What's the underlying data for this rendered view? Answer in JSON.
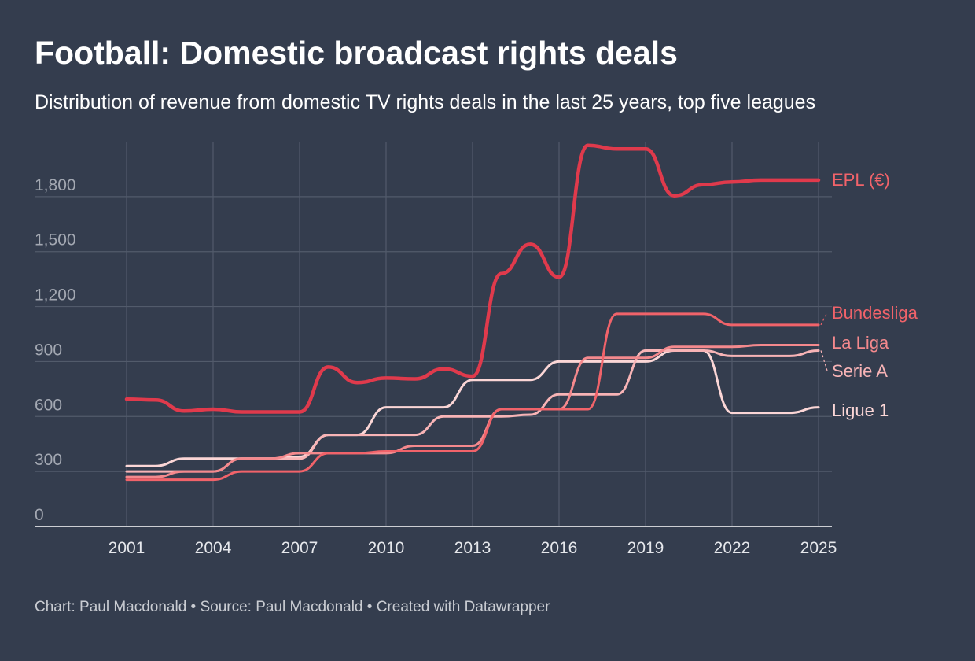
{
  "title": "Football: Domestic broadcast rights deals",
  "subtitle": "Distribution of revenue from domestic TV rights deals in the last 25 years, top five leagues",
  "footer": "Chart: Paul Macdonald • Source: Paul Macdonald • Created with Datawrapper",
  "chart_data": {
    "type": "line",
    "title": "Football: Domestic broadcast rights deals",
    "subtitle": "Distribution of revenue from domestic TV rights deals in the last 25 years, top five leagues",
    "xlim": [
      2001,
      2025
    ],
    "ylim": [
      0,
      2100
    ],
    "x_ticks": [
      "2001",
      "2004",
      "2007",
      "2010",
      "2013",
      "2016",
      "2019",
      "2022",
      "2025"
    ],
    "y_ticks": [
      "0",
      "300",
      "600",
      "900",
      "1,200",
      "1,500",
      "1,800"
    ],
    "y_tick_values": [
      0,
      300,
      600,
      900,
      1200,
      1500,
      1800
    ],
    "grid": true,
    "legend": "direct labels at line ends (right)",
    "x": [
      2001,
      2002,
      2003,
      2004,
      2005,
      2006,
      2007,
      2008,
      2009,
      2010,
      2011,
      2012,
      2013,
      2014,
      2015,
      2016,
      2017,
      2018,
      2019,
      2020,
      2021,
      2022,
      2023,
      2024,
      2025
    ],
    "series": [
      {
        "name": "EPL (€)",
        "color": "#e03a4c",
        "values": [
          695,
          690,
          630,
          640,
          625,
          625,
          625,
          870,
          785,
          810,
          805,
          860,
          820,
          1380,
          1540,
          1360,
          2080,
          2060,
          2060,
          1805,
          1865,
          1880,
          1890,
          1890,
          1890
        ]
      },
      {
        "name": "Bundesliga",
        "color": "#f1636a",
        "values": [
          255,
          255,
          255,
          255,
          300,
          300,
          300,
          400,
          400,
          410,
          410,
          410,
          410,
          640,
          640,
          640,
          640,
          1160,
          1160,
          1160,
          1160,
          1100,
          1100,
          1100,
          1100
        ]
      },
      {
        "name": "La Liga",
        "color": "#f4898d",
        "values": [
          270,
          270,
          300,
          300,
          370,
          370,
          400,
          400,
          400,
          400,
          440,
          440,
          440,
          640,
          640,
          640,
          920,
          920,
          920,
          980,
          980,
          980,
          990,
          990,
          990
        ]
      },
      {
        "name": "Serie A",
        "color": "#f8b4b6",
        "values": [
          300,
          300,
          300,
          300,
          370,
          370,
          370,
          500,
          500,
          500,
          500,
          600,
          600,
          600,
          610,
          720,
          720,
          720,
          960,
          960,
          960,
          930,
          930,
          930,
          960
        ]
      },
      {
        "name": "Ligue 1",
        "color": "#fbd6d6",
        "values": [
          330,
          330,
          370,
          370,
          370,
          370,
          380,
          500,
          500,
          650,
          650,
          650,
          800,
          800,
          800,
          900,
          900,
          900,
          900,
          960,
          960,
          620,
          620,
          620,
          650
        ]
      }
    ],
    "label_colors": {
      "EPL (€)": "#f1636a",
      "Bundesliga": "#f1636a",
      "La Liga": "#f4898d",
      "Serie A": "#f8b4b6",
      "Ligue 1": "#fbd6d6"
    },
    "grid_color": "#525b6b",
    "axis_color": "#ffffff"
  }
}
